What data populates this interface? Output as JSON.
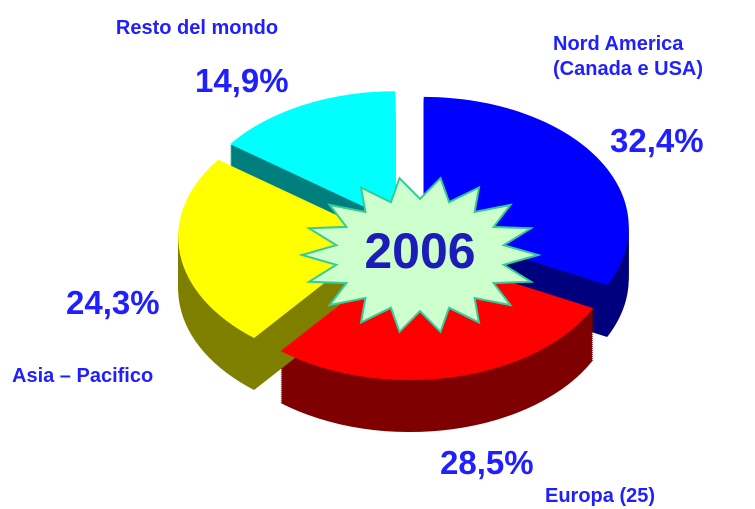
{
  "chart_data": {
    "type": "pie",
    "categories": [
      "Nord America (Canada e USA)",
      "Europa (25)",
      "Asia – Pacifico",
      "Resto del mondo"
    ],
    "values": [
      32.4,
      28.5,
      24.3,
      14.9
    ],
    "value_labels": [
      "32,4%",
      "28,5%",
      "24,3%",
      "14,9%"
    ],
    "colors": [
      "#0000ff",
      "#ff0000",
      "#ffff00",
      "#00ffff"
    ],
    "annotation": "2006"
  }
}
